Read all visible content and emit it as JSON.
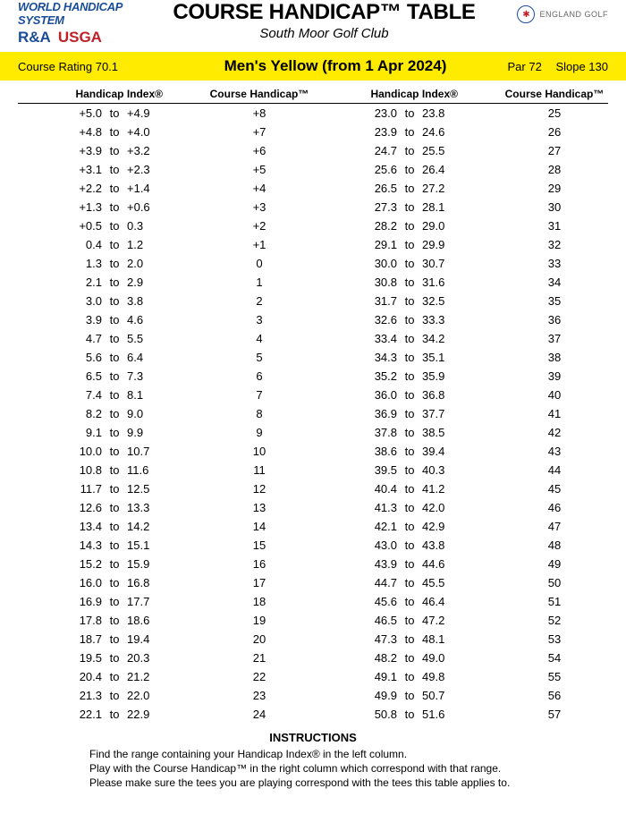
{
  "header": {
    "whs": "WORLD HANDICAP SYSTEM",
    "ra": "R&A",
    "usga": "USGA",
    "title": "COURSE HANDICAP™ TABLE",
    "subtitle": "South Moor Golf Club",
    "england_golf": "ENGLAND GOLF"
  },
  "bar": {
    "rating_label": "Course Rating 70.1",
    "tee": "Men's Yellow (from 1 Apr 2024)",
    "par": "Par 72",
    "slope": "Slope 130"
  },
  "headers": {
    "hi": "Handicap Index®",
    "ch": "Course Handicap™"
  },
  "columns": {
    "left": [
      {
        "from": "+5.0",
        "to": "+4.9",
        "ch": "+8"
      },
      {
        "from": "+4.8",
        "to": "+4.0",
        "ch": "+7"
      },
      {
        "from": "+3.9",
        "to": "+3.2",
        "ch": "+6"
      },
      {
        "from": "+3.1",
        "to": "+2.3",
        "ch": "+5"
      },
      {
        "from": "+2.2",
        "to": "+1.4",
        "ch": "+4"
      },
      {
        "from": "+1.3",
        "to": "+0.6",
        "ch": "+3"
      },
      {
        "from": "+0.5",
        "to": "0.3",
        "ch": "+2"
      },
      {
        "from": "0.4",
        "to": "1.2",
        "ch": "+1"
      },
      {
        "from": "1.3",
        "to": "2.0",
        "ch": "0"
      },
      {
        "from": "2.1",
        "to": "2.9",
        "ch": "1"
      },
      {
        "from": "3.0",
        "to": "3.8",
        "ch": "2"
      },
      {
        "from": "3.9",
        "to": "4.6",
        "ch": "3"
      },
      {
        "from": "4.7",
        "to": "5.5",
        "ch": "4"
      },
      {
        "from": "5.6",
        "to": "6.4",
        "ch": "5"
      },
      {
        "from": "6.5",
        "to": "7.3",
        "ch": "6"
      },
      {
        "from": "7.4",
        "to": "8.1",
        "ch": "7"
      },
      {
        "from": "8.2",
        "to": "9.0",
        "ch": "8"
      },
      {
        "from": "9.1",
        "to": "9.9",
        "ch": "9"
      },
      {
        "from": "10.0",
        "to": "10.7",
        "ch": "10"
      },
      {
        "from": "10.8",
        "to": "11.6",
        "ch": "11"
      },
      {
        "from": "11.7",
        "to": "12.5",
        "ch": "12"
      },
      {
        "from": "12.6",
        "to": "13.3",
        "ch": "13"
      },
      {
        "from": "13.4",
        "to": "14.2",
        "ch": "14"
      },
      {
        "from": "14.3",
        "to": "15.1",
        "ch": "15"
      },
      {
        "from": "15.2",
        "to": "15.9",
        "ch": "16"
      },
      {
        "from": "16.0",
        "to": "16.8",
        "ch": "17"
      },
      {
        "from": "16.9",
        "to": "17.7",
        "ch": "18"
      },
      {
        "from": "17.8",
        "to": "18.6",
        "ch": "19"
      },
      {
        "from": "18.7",
        "to": "19.4",
        "ch": "20"
      },
      {
        "from": "19.5",
        "to": "20.3",
        "ch": "21"
      },
      {
        "from": "20.4",
        "to": "21.2",
        "ch": "22"
      },
      {
        "from": "21.3",
        "to": "22.0",
        "ch": "23"
      },
      {
        "from": "22.1",
        "to": "22.9",
        "ch": "24"
      }
    ],
    "right": [
      {
        "from": "23.0",
        "to": "23.8",
        "ch": "25"
      },
      {
        "from": "23.9",
        "to": "24.6",
        "ch": "26"
      },
      {
        "from": "24.7",
        "to": "25.5",
        "ch": "27"
      },
      {
        "from": "25.6",
        "to": "26.4",
        "ch": "28"
      },
      {
        "from": "26.5",
        "to": "27.2",
        "ch": "29"
      },
      {
        "from": "27.3",
        "to": "28.1",
        "ch": "30"
      },
      {
        "from": "28.2",
        "to": "29.0",
        "ch": "31"
      },
      {
        "from": "29.1",
        "to": "29.9",
        "ch": "32"
      },
      {
        "from": "30.0",
        "to": "30.7",
        "ch": "33"
      },
      {
        "from": "30.8",
        "to": "31.6",
        "ch": "34"
      },
      {
        "from": "31.7",
        "to": "32.5",
        "ch": "35"
      },
      {
        "from": "32.6",
        "to": "33.3",
        "ch": "36"
      },
      {
        "from": "33.4",
        "to": "34.2",
        "ch": "37"
      },
      {
        "from": "34.3",
        "to": "35.1",
        "ch": "38"
      },
      {
        "from": "35.2",
        "to": "35.9",
        "ch": "39"
      },
      {
        "from": "36.0",
        "to": "36.8",
        "ch": "40"
      },
      {
        "from": "36.9",
        "to": "37.7",
        "ch": "41"
      },
      {
        "from": "37.8",
        "to": "38.5",
        "ch": "42"
      },
      {
        "from": "38.6",
        "to": "39.4",
        "ch": "43"
      },
      {
        "from": "39.5",
        "to": "40.3",
        "ch": "44"
      },
      {
        "from": "40.4",
        "to": "41.2",
        "ch": "45"
      },
      {
        "from": "41.3",
        "to": "42.0",
        "ch": "46"
      },
      {
        "from": "42.1",
        "to": "42.9",
        "ch": "47"
      },
      {
        "from": "43.0",
        "to": "43.8",
        "ch": "48"
      },
      {
        "from": "43.9",
        "to": "44.6",
        "ch": "49"
      },
      {
        "from": "44.7",
        "to": "45.5",
        "ch": "50"
      },
      {
        "from": "45.6",
        "to": "46.4",
        "ch": "51"
      },
      {
        "from": "46.5",
        "to": "47.2",
        "ch": "52"
      },
      {
        "from": "47.3",
        "to": "48.1",
        "ch": "53"
      },
      {
        "from": "48.2",
        "to": "49.0",
        "ch": "54"
      },
      {
        "from": "49.1",
        "to": "49.8",
        "ch": "55"
      },
      {
        "from": "49.9",
        "to": "50.7",
        "ch": "56"
      },
      {
        "from": "50.8",
        "to": "51.6",
        "ch": "57"
      }
    ]
  },
  "instructions": {
    "title": "INSTRUCTIONS",
    "line1": "Find the range containing your Handicap Index® in the left column.",
    "line2": "Play with the Course Handicap™ in the right column which correspond with that range.",
    "line3": "Please make sure the tees you are playing correspond with the tees this table applies to."
  },
  "style": {
    "bar_bg": "#ffeb00",
    "text_color": "#000000",
    "bg": "#ffffff",
    "whs_color": "#1a4d99",
    "usga_color": "#c02026"
  }
}
